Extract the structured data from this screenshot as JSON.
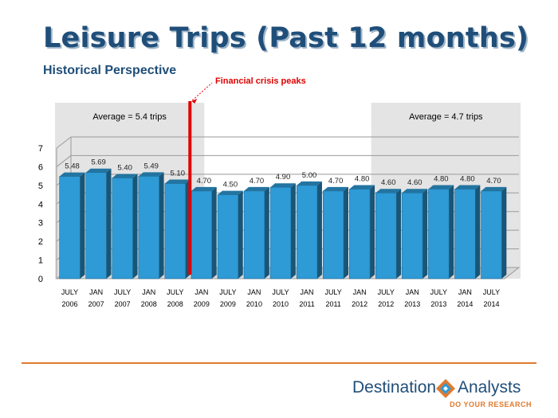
{
  "slide": {
    "title": "Leisure Trips (Past 12 months)",
    "subtitle": "Historical Perspective"
  },
  "chart_data": {
    "type": "bar",
    "categories": [
      [
        "JULY",
        "2006"
      ],
      [
        "JAN",
        "2007"
      ],
      [
        "JULY",
        "2007"
      ],
      [
        "JAN",
        "2008"
      ],
      [
        "JULY",
        "2008"
      ],
      [
        "JAN",
        "2009"
      ],
      [
        "JULY",
        "2009"
      ],
      [
        "JAN",
        "2010"
      ],
      [
        "JULY",
        "2010"
      ],
      [
        "JAN",
        "2011"
      ],
      [
        "JULY",
        "2011"
      ],
      [
        "JAN",
        "2012"
      ],
      [
        "JULY",
        "2012"
      ],
      [
        "JAN",
        "2013"
      ],
      [
        "JULY",
        "2013"
      ],
      [
        "JAN",
        "2014"
      ],
      [
        "JULY",
        "2014"
      ]
    ],
    "values": [
      5.48,
      5.69,
      5.4,
      5.49,
      5.1,
      4.7,
      4.5,
      4.7,
      4.9,
      5.0,
      4.7,
      4.8,
      4.6,
      4.6,
      4.8,
      4.8,
      4.7
    ],
    "value_labels": [
      "5.48",
      "5.69",
      "5.40",
      "5.49",
      "5.10",
      "4.70",
      "4.50",
      "4.70",
      "4.90",
      "5.00",
      "4.70",
      "4.80",
      "4.60",
      "4.60",
      "4.80",
      "4.80",
      "4.70"
    ],
    "y_ticks": [
      "0",
      "1",
      "2",
      "3",
      "4",
      "5",
      "6",
      "7"
    ],
    "ylim": [
      0,
      7
    ],
    "grid": true,
    "three_d": true,
    "bar_color": "#2e9ad6",
    "averages": [
      {
        "label": "Average = 5.4 trips",
        "from_index": 0,
        "to_index": 4
      },
      {
        "label": "Average = 4.7 trips",
        "from_index": 12,
        "to_index": 16
      }
    ],
    "marker": {
      "label": "Financial crisis peaks",
      "after_index": 4,
      "color": "#e00000"
    }
  },
  "logo": {
    "name_left": "Destination",
    "name_right": "Analysts",
    "tagline": "DO YOUR RESEARCH"
  }
}
